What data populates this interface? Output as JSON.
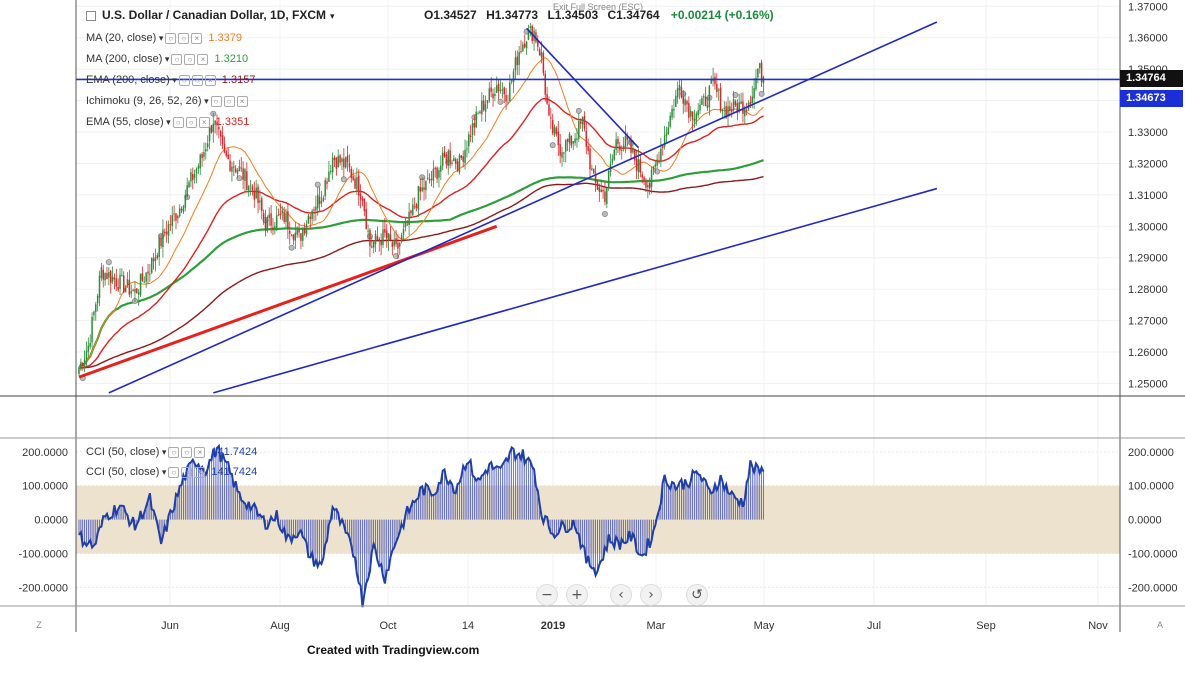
{
  "header": {
    "symbol": "U.S. Dollar / Canadian Dollar, 1D, FXCM",
    "open": "O1.34527",
    "high": "H1.34773",
    "low": "L1.34503",
    "close": "C1.34764",
    "change": "+0.00214 (+0.16%)",
    "fullscreen_hint": "Exit Full Screen (ESC)"
  },
  "indicators": [
    {
      "label": "MA (20, close)",
      "value": "1.3379",
      "color": "#f57c1f"
    },
    {
      "label": "MA (200, close)",
      "value": "1.3210",
      "color": "#2e9e3a"
    },
    {
      "label": "EMA (200, close)",
      "value": "1.3157",
      "color": "#8b1a1a"
    },
    {
      "label": "Ichimoku (9, 26, 52, 26)",
      "value": "",
      "color": "#999999"
    },
    {
      "label": "EMA (55, close)",
      "value": "1.3351",
      "color": "#e02020"
    }
  ],
  "cci_legend": [
    {
      "label": "CCI (50, close)",
      "value": "141.7424",
      "color": "#1f3fa8"
    },
    {
      "label": "CCI (50, close)",
      "value": "141.7424",
      "color": "#1f3fa8"
    }
  ],
  "price_tags": [
    {
      "value": "1.34764",
      "color": "#111111"
    },
    {
      "value": "1.34673",
      "color": "#1a2fd6"
    }
  ],
  "footer": "Created with Tradingview.com",
  "corner_left": "Z",
  "corner_right": "A",
  "nav_icons": [
    "zoom-out-icon",
    "zoom-in-icon",
    "scroll-left-icon",
    "scroll-right-icon",
    "reset-icon"
  ],
  "chart_data": {
    "type": "candlestick",
    "instrument": "USD/CAD",
    "ylim": [
      1.246,
      1.372
    ],
    "price_ticks": [
      "1.37000",
      "1.36000",
      "1.35000",
      "1.34000",
      "1.33000",
      "1.32000",
      "1.31000",
      "1.30000",
      "1.29000",
      "1.28000",
      "1.27000",
      "1.26000",
      "1.25000"
    ],
    "x_ticks": [
      "Jun",
      "Aug",
      "Oct",
      "14",
      "2019",
      "Mar",
      "May",
      "Jul",
      "Sep",
      "Nov"
    ],
    "cci_ticks": [
      "200.0000",
      "100.0000",
      "0.0000",
      "-100.0000",
      "-200.0000"
    ],
    "cci_ylim": [
      -255,
      235
    ],
    "cci_band": [
      -100,
      100
    ],
    "close_anchors": [
      [
        0,
        1.255
      ],
      [
        5,
        1.262
      ],
      [
        12,
        1.286
      ],
      [
        22,
        1.282
      ],
      [
        30,
        1.279
      ],
      [
        38,
        1.287
      ],
      [
        46,
        1.298
      ],
      [
        54,
        1.306
      ],
      [
        58,
        1.312
      ],
      [
        66,
        1.322
      ],
      [
        72,
        1.334
      ],
      [
        78,
        1.322
      ],
      [
        86,
        1.318
      ],
      [
        94,
        1.311
      ],
      [
        100,
        1.301
      ],
      [
        110,
        1.303
      ],
      [
        118,
        1.296
      ],
      [
        124,
        1.305
      ],
      [
        130,
        1.31
      ],
      [
        136,
        1.322
      ],
      [
        144,
        1.319
      ],
      [
        152,
        1.31
      ],
      [
        156,
        1.294
      ],
      [
        164,
        1.297
      ],
      [
        170,
        1.292
      ],
      [
        176,
        1.3
      ],
      [
        182,
        1.31
      ],
      [
        190,
        1.316
      ],
      [
        198,
        1.323
      ],
      [
        204,
        1.32
      ],
      [
        210,
        1.33
      ],
      [
        216,
        1.338
      ],
      [
        224,
        1.345
      ],
      [
        230,
        1.342
      ],
      [
        236,
        1.356
      ],
      [
        240,
        1.361
      ],
      [
        244,
        1.362
      ],
      [
        248,
        1.354
      ],
      [
        252,
        1.333
      ],
      [
        258,
        1.325
      ],
      [
        264,
        1.327
      ],
      [
        270,
        1.333
      ],
      [
        276,
        1.314
      ],
      [
        282,
        1.31
      ],
      [
        288,
        1.327
      ],
      [
        294,
        1.326
      ],
      [
        300,
        1.319
      ],
      [
        306,
        1.313
      ],
      [
        312,
        1.325
      ],
      [
        318,
        1.337
      ],
      [
        322,
        1.345
      ],
      [
        328,
        1.336
      ],
      [
        334,
        1.338
      ],
      [
        340,
        1.345
      ],
      [
        346,
        1.337
      ],
      [
        352,
        1.338
      ],
      [
        358,
        1.339
      ],
      [
        362,
        1.344
      ],
      [
        364,
        1.35
      ],
      [
        367,
        1.3476
      ]
    ],
    "ma20_last": 1.3379,
    "ma200_last": 1.321,
    "ema200_last": 1.3157,
    "ema55_last": 1.3351,
    "horizontal_line": 1.34673,
    "last_price": 1.34764,
    "cci_anchors": [
      [
        0,
        -50
      ],
      [
        8,
        -80
      ],
      [
        14,
        10
      ],
      [
        22,
        40
      ],
      [
        30,
        -20
      ],
      [
        38,
        60
      ],
      [
        44,
        -70
      ],
      [
        50,
        30
      ],
      [
        56,
        120
      ],
      [
        62,
        175
      ],
      [
        68,
        150
      ],
      [
        74,
        210
      ],
      [
        80,
        150
      ],
      [
        86,
        70
      ],
      [
        92,
        40
      ],
      [
        100,
        -10
      ],
      [
        106,
        10
      ],
      [
        112,
        -60
      ],
      [
        118,
        -30
      ],
      [
        124,
        -110
      ],
      [
        130,
        -140
      ],
      [
        136,
        40
      ],
      [
        142,
        -30
      ],
      [
        148,
        -110
      ],
      [
        152,
        -240
      ],
      [
        158,
        -80
      ],
      [
        164,
        -170
      ],
      [
        170,
        -60
      ],
      [
        176,
        20
      ],
      [
        184,
        90
      ],
      [
        190,
        80
      ],
      [
        196,
        140
      ],
      [
        202,
        90
      ],
      [
        208,
        180
      ],
      [
        214,
        110
      ],
      [
        220,
        160
      ],
      [
        226,
        140
      ],
      [
        232,
        200
      ],
      [
        238,
        190
      ],
      [
        244,
        150
      ],
      [
        248,
        20
      ],
      [
        254,
        -40
      ],
      [
        260,
        -20
      ],
      [
        266,
        -10
      ],
      [
        272,
        -120
      ],
      [
        278,
        -150
      ],
      [
        284,
        -60
      ],
      [
        290,
        -70
      ],
      [
        296,
        -50
      ],
      [
        302,
        -110
      ],
      [
        308,
        -40
      ],
      [
        314,
        120
      ],
      [
        320,
        100
      ],
      [
        326,
        110
      ],
      [
        332,
        140
      ],
      [
        338,
        80
      ],
      [
        344,
        120
      ],
      [
        350,
        70
      ],
      [
        356,
        50
      ],
      [
        360,
        160
      ],
      [
        364,
        141.7
      ],
      [
        367,
        141.74
      ]
    ],
    "trendlines": [
      {
        "name": "support-trend-red",
        "color": "#e8201c",
        "points": [
          [
            0,
            1.252
          ],
          [
            224,
            1.3
          ]
        ]
      },
      {
        "name": "rising-trend-upper",
        "color": "#1f28c4",
        "points": [
          [
            16,
            1.247
          ],
          [
            460,
            1.365
          ]
        ]
      },
      {
        "name": "rising-trend-lower",
        "color": "#1f28c4",
        "points": [
          [
            72,
            1.247
          ],
          [
            460,
            1.312
          ]
        ]
      },
      {
        "name": "falling-trend",
        "color": "#1f28c4",
        "points": [
          [
            240,
            1.363
          ],
          [
            300,
            1.325
          ]
        ]
      }
    ]
  }
}
